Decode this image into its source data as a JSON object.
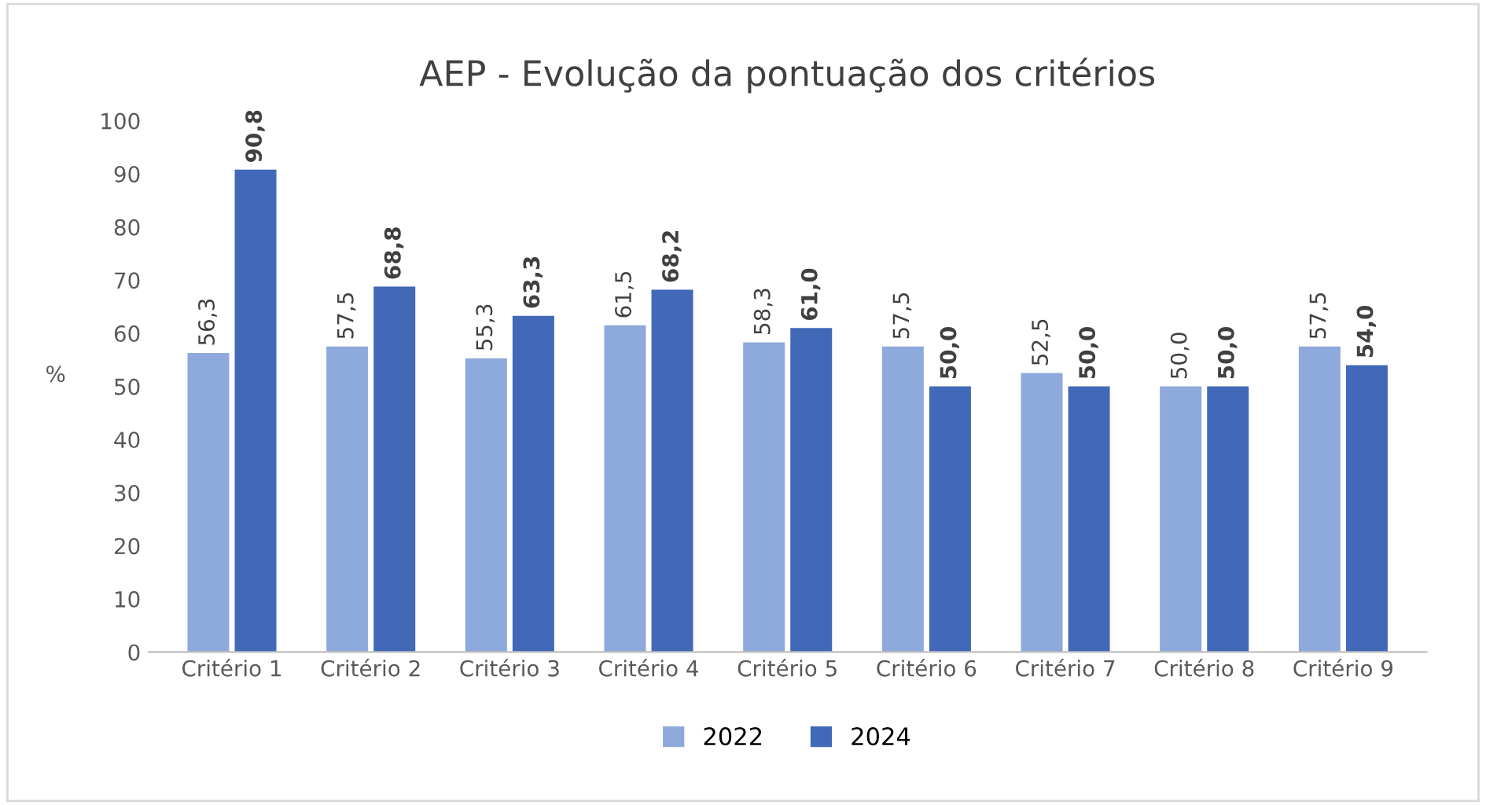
{
  "chart_data": {
    "type": "bar",
    "title": "AEP - Evolução da pontuação dos critérios",
    "ylabel": "%",
    "categories": [
      "Critério 1",
      "Critério 2",
      "Critério 3",
      "Critério 4",
      "Critério 5",
      "Critério 6",
      "Critério 7",
      "Critério 8",
      "Critério 9"
    ],
    "series": [
      {
        "name": "2022",
        "color": "#8ea9db",
        "values": [
          56.3,
          57.5,
          55.3,
          61.5,
          58.3,
          57.5,
          52.5,
          50.0,
          57.5
        ],
        "value_labels": [
          "56,3",
          "57,5",
          "55,3",
          "61,5",
          "58,3",
          "57,5",
          "52,5",
          "50,0",
          "57,5"
        ]
      },
      {
        "name": "2024",
        "color": "#4169b8",
        "values": [
          90.8,
          68.8,
          63.3,
          68.2,
          61.0,
          50.0,
          50.0,
          50.0,
          54.0
        ],
        "value_labels": [
          "90,8",
          "68,8",
          "63,3",
          "68,2",
          "61,0",
          "50,0",
          "50,0",
          "50,0",
          "54,0"
        ]
      }
    ],
    "ylim": [
      0,
      100
    ],
    "yticks": [
      0,
      10,
      20,
      30,
      40,
      50,
      60,
      70,
      80,
      90,
      100
    ],
    "grid": false,
    "legend": "bottom"
  }
}
